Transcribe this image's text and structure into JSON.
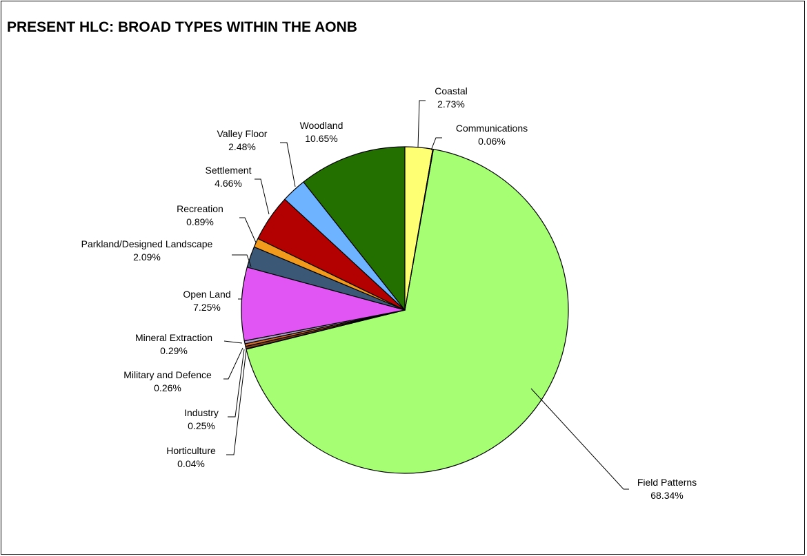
{
  "chart_data": {
    "type": "pie",
    "title": "PRESENT HLC: BROAD TYPES WITHIN THE AONB",
    "slices": [
      {
        "label": "Field Patterns",
        "value": 68.34,
        "display": "68.34%",
        "color": "#a6ff73"
      },
      {
        "label": "Horticulture",
        "value": 0.04,
        "display": "0.04%",
        "color": "#404040"
      },
      {
        "label": "Industry",
        "value": 0.25,
        "display": "0.25%",
        "color": "#7a3a1a"
      },
      {
        "label": "Military and Defence",
        "value": 0.26,
        "display": "0.26%",
        "color": "#cc6a2a"
      },
      {
        "label": "Mineral Extraction",
        "value": 0.29,
        "display": "0.29%",
        "color": "#b0a0c8"
      },
      {
        "label": "Open Land",
        "value": 7.25,
        "display": "7.25%",
        "color": "#e255f5"
      },
      {
        "label": "Parkland/Designed Landscape",
        "value": 2.09,
        "display": "2.09%",
        "color": "#3b5876"
      },
      {
        "label": "Recreation",
        "value": 0.89,
        "display": "0.89%",
        "color": "#f19a1c"
      },
      {
        "label": "Settlement",
        "value": 4.66,
        "display": "4.66%",
        "color": "#b30000"
      },
      {
        "label": "Valley Floor",
        "value": 2.48,
        "display": "2.48%",
        "color": "#6eb3ff"
      },
      {
        "label": "Woodland",
        "value": 10.65,
        "display": "10.65%",
        "color": "#237000"
      },
      {
        "label": "Coastal",
        "value": 2.73,
        "display": "2.73%",
        "color": "#ffff73"
      },
      {
        "label": "Communications",
        "value": 0.06,
        "display": "0.06%",
        "color": "#808080"
      }
    ]
  }
}
